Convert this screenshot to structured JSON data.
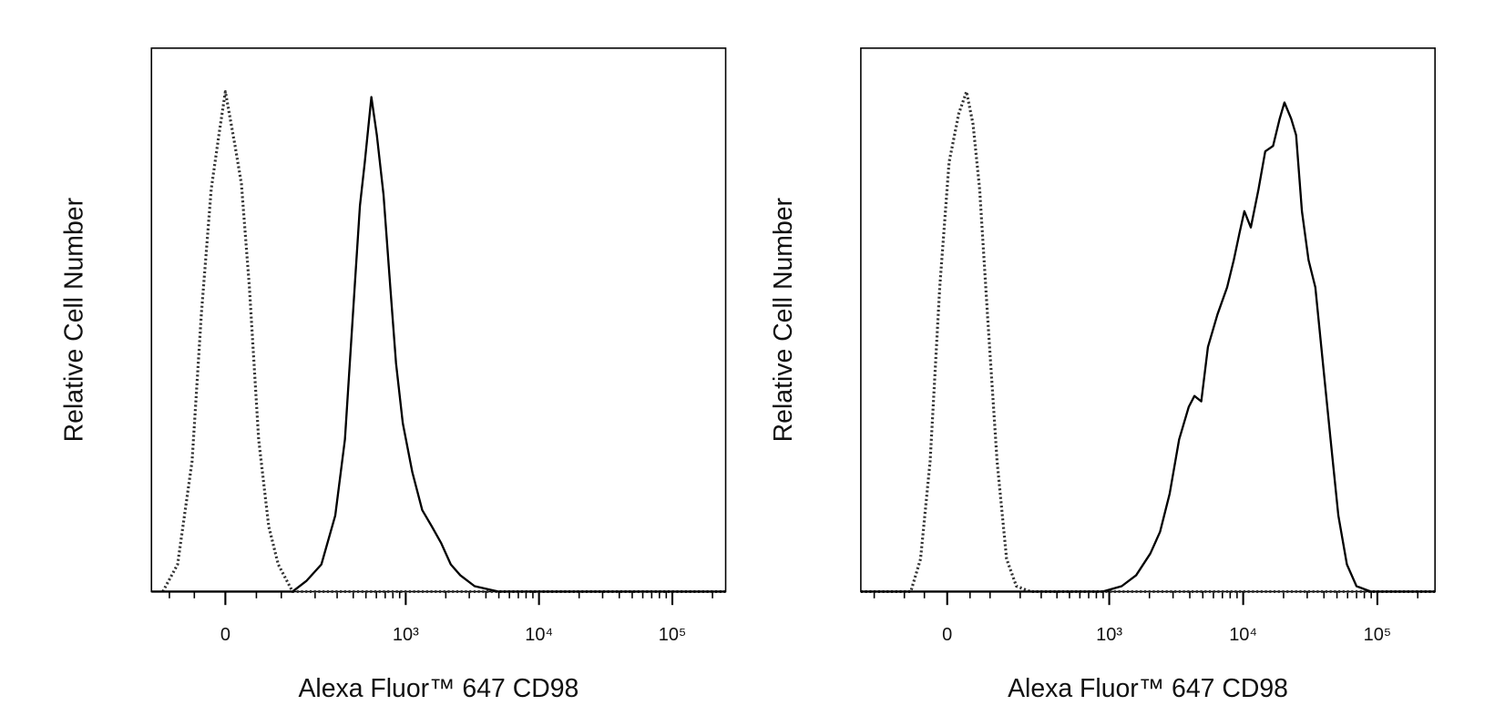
{
  "chart_data": [
    {
      "type": "histogram-overlay",
      "xscale": "asinh",
      "xscale_width": 89,
      "xlabel": "Alexa Fluor™ 647 CD98",
      "ylabel": "Relative Cell Number",
      "xlim": [
        -147,
        251000
      ],
      "ylim": [
        0,
        100
      ],
      "xticks": [
        0,
        {
          "value": 1000,
          "label": "10³"
        },
        {
          "value": 10000,
          "label": "10⁴"
        },
        {
          "value": 100000,
          "label": "10⁵"
        }
      ],
      "xminor_ticks": [
        -100,
        -50,
        50,
        100,
        200,
        300,
        400,
        500,
        600,
        700,
        800,
        900,
        2000,
        3000,
        4000,
        5000,
        6000,
        7000,
        8000,
        9000,
        20000,
        30000,
        40000,
        50000,
        60000,
        70000,
        80000,
        90000,
        200000
      ],
      "series": [
        {
          "color": "#333333",
          "dash": "dotted",
          "x": [
            -116,
            -82,
            -54,
            -38,
            -22,
            -10,
            0,
            15,
            25,
            38,
            54,
            73,
            93,
            128,
            251000
          ],
          "values": [
            0,
            5,
            24,
            51,
            74,
            84,
            92,
            82,
            75,
            56,
            28,
            12,
            5,
            0,
            0
          ]
        },
        {
          "color": "#000000",
          "dash": "solid",
          "x": [
            -147,
            128,
            170,
            225,
            290,
            345,
            410,
            450,
            490,
            550,
            605,
            680,
            765,
            845,
            950,
            1120,
            1330,
            1570,
            1840,
            2180,
            2570,
            3290,
            4980,
            251000
          ],
          "values": [
            0,
            0,
            2,
            5,
            14,
            28,
            56,
            71,
            79,
            91,
            84,
            73,
            56,
            42,
            31,
            22,
            15,
            12,
            9,
            5,
            3,
            1,
            0,
            0
          ]
        }
      ]
    },
    {
      "type": "histogram-overlay",
      "xscale": "asinh",
      "xscale_width": 124.5,
      "xlabel": "Alexa Fluor™ 647 CD98",
      "ylabel": "Relative Cell Number",
      "xlim": [
        -260,
        269000
      ],
      "ylim": [
        0,
        100
      ],
      "xticks": [
        0,
        {
          "value": 1000,
          "label": "10³"
        },
        {
          "value": 10000,
          "label": "10⁴"
        },
        {
          "value": 100000,
          "label": "10⁵"
        }
      ],
      "xminor_ticks": [
        -200,
        -100,
        -50,
        50,
        100,
        200,
        300,
        400,
        500,
        600,
        700,
        800,
        900,
        2000,
        3000,
        4000,
        5000,
        6000,
        7000,
        8000,
        9000,
        20000,
        30000,
        40000,
        50000,
        60000,
        70000,
        80000,
        90000,
        200000
      ],
      "series": [
        {
          "color": "#333333",
          "dash": "dotted",
          "x": [
            -260,
            -83,
            -59,
            -37,
            -16,
            4,
            25,
            42,
            57,
            73,
            93,
            120,
            150,
            185,
            245,
            269000
          ],
          "values": [
            0,
            0,
            6,
            24,
            56,
            79,
            88,
            92,
            86,
            74,
            51,
            24,
            6,
            1,
            0,
            0
          ]
        },
        {
          "color": "#000000",
          "dash": "solid",
          "x": [
            -260,
            890,
            1240,
            1590,
            2030,
            2400,
            2830,
            3330,
            3930,
            4330,
            4870,
            5460,
            6430,
            7590,
            8510,
            9390,
            10200,
            11400,
            13000,
            14600,
            16700,
            18700,
            20300,
            22800,
            24800,
            27400,
            30700,
            34500,
            39300,
            44800,
            51200,
            59300,
            69900,
            89500,
            269000
          ],
          "values": [
            0,
            0,
            1,
            3,
            7,
            11,
            18,
            28,
            34,
            36,
            35,
            45,
            51,
            56,
            61,
            66,
            70,
            67,
            74,
            81,
            82,
            87,
            90,
            87,
            84,
            70,
            61,
            56,
            42,
            28,
            14,
            5,
            1,
            0,
            0
          ]
        }
      ]
    }
  ]
}
